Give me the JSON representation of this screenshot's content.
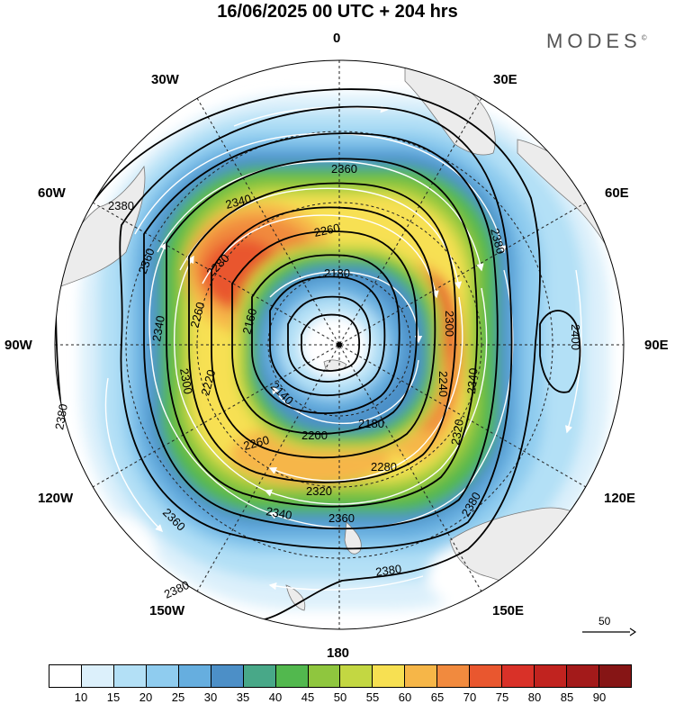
{
  "title": "16/06/2025  00 UTC  + 204 hrs",
  "brand": "MODES",
  "brand_mark": "©",
  "longitudes": {
    "n": "0",
    "s": "180",
    "e30": "30E",
    "e60": "60E",
    "e90": "90E",
    "e120": "120E",
    "e150": "150E",
    "w30": "30W",
    "w60": "60W",
    "w90": "90W",
    "w120": "120W",
    "w150": "150W"
  },
  "reference_vector": {
    "label": "50"
  },
  "colorbar": {
    "ticks": [
      "10",
      "15",
      "20",
      "25",
      "30",
      "35",
      "40",
      "45",
      "50",
      "55",
      "60",
      "65",
      "70",
      "75",
      "80",
      "85",
      "90"
    ],
    "colors": [
      "#ffffff",
      "#dcf0fb",
      "#b3e0f6",
      "#8fccef",
      "#66aedf",
      "#4c8fc7",
      "#48a888",
      "#52b84e",
      "#8fc63e",
      "#c3d742",
      "#f7e052",
      "#f6b648",
      "#f18a3e",
      "#e9572f",
      "#d93128",
      "#c1231f",
      "#a31a1a",
      "#861515"
    ]
  },
  "contour_labels": {
    "l2380a": "2380",
    "l2380b": "2380",
    "l2380c": "2380",
    "l2380d": "2380",
    "l2380e": "2380",
    "l2380f": "2380",
    "l2360a": "2360",
    "l2360b": "2360",
    "l2360c": "2360",
    "l2360d": "2360",
    "l2340a": "2340",
    "l2340b": "2340",
    "l2340c": "2340",
    "l2340d": "2340",
    "l2320a": "2320",
    "l2320b": "2320",
    "l2300a": "2300",
    "l2300b": "2300",
    "l2280a": "2280",
    "l2280b": "2280",
    "l2260a": "2260",
    "l2260b": "2260",
    "l2260c": "2260",
    "l2240a": "2240",
    "l2220a": "2220",
    "l2200a": "2200",
    "l2180a": "2180",
    "l2180b": "2180",
    "l2160a": "2160",
    "l2140a": "2140",
    "l2400a": "2400"
  }
}
